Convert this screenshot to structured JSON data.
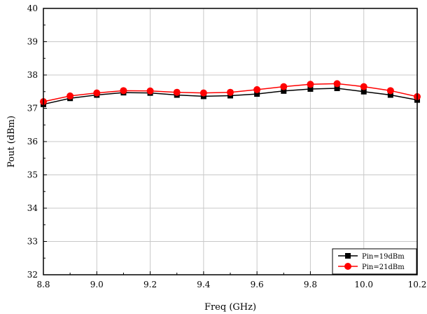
{
  "chart_data": {
    "type": "line",
    "xlabel": "Freq (GHz)",
    "ylabel": "Pout (dBm)",
    "xlim": [
      8.8,
      10.2
    ],
    "ylim": [
      32,
      40
    ],
    "xticks": [
      8.8,
      9.0,
      9.2,
      9.4,
      9.6,
      9.8,
      10.0,
      10.2
    ],
    "xtick_labels": [
      "8.8",
      "9.0",
      "9.2",
      "9.4",
      "9.6",
      "9.8",
      "10.0",
      "10.2"
    ],
    "yticks": [
      32,
      33,
      34,
      35,
      36,
      37,
      38,
      39,
      40
    ],
    "ytick_labels": [
      "32",
      "33",
      "34",
      "35",
      "36",
      "37",
      "38",
      "39",
      "40"
    ],
    "grid": true,
    "legend_position": "bottom-right",
    "x": [
      8.8,
      8.9,
      9.0,
      9.1,
      9.2,
      9.3,
      9.4,
      9.5,
      9.6,
      9.7,
      9.8,
      9.9,
      10.0,
      10.1,
      10.2
    ],
    "series": [
      {
        "name": "Pin=19dBm",
        "color": "#000000",
        "marker": "square",
        "values": [
          37.12,
          37.3,
          37.4,
          37.47,
          37.46,
          37.4,
          37.36,
          37.38,
          37.43,
          37.52,
          37.58,
          37.6,
          37.5,
          37.4,
          37.25
        ]
      },
      {
        "name": "Pin=21dBm",
        "color": "#ff0000",
        "marker": "circle",
        "values": [
          37.2,
          37.37,
          37.46,
          37.53,
          37.52,
          37.48,
          37.46,
          37.48,
          37.56,
          37.65,
          37.72,
          37.74,
          37.65,
          37.53,
          37.35
        ]
      }
    ]
  }
}
